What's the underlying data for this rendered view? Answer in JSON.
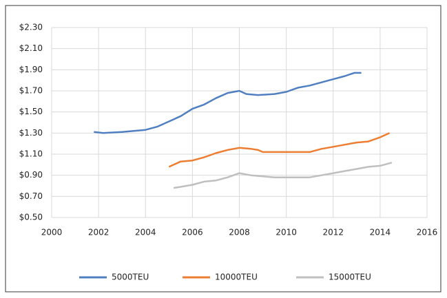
{
  "chart_data": {
    "type": "line",
    "xlim": [
      2000,
      2016
    ],
    "xticks": [
      2000,
      2002,
      2004,
      2006,
      2008,
      2010,
      2012,
      2014,
      2016
    ],
    "ylim": [
      0.5,
      2.3
    ],
    "yticks": [
      {
        "value": 0.5,
        "label": "$0.50"
      },
      {
        "value": 0.7,
        "label": "$0.70"
      },
      {
        "value": 0.9,
        "label": "$0.90"
      },
      {
        "value": 1.1,
        "label": "$1.10"
      },
      {
        "value": 1.3,
        "label": "$1.30"
      },
      {
        "value": 1.5,
        "label": "$1.50"
      },
      {
        "value": 1.7,
        "label": "$1.70"
      },
      {
        "value": 1.9,
        "label": "$1.90"
      },
      {
        "value": 2.1,
        "label": "$2.10"
      },
      {
        "value": 2.3,
        "label": "$2.30"
      }
    ],
    "grid": true,
    "legend": "bottom",
    "series": [
      {
        "name": "5000TEU",
        "color": "#4f7fc0",
        "x": [
          2001.8,
          2002.2,
          2003,
          2003.5,
          2004,
          2004.5,
          2005,
          2005.5,
          2006,
          2006.5,
          2007,
          2007.5,
          2008,
          2008.3,
          2008.8,
          2009.5,
          2010,
          2010.5,
          2011,
          2011.5,
          2012,
          2012.5,
          2012.9,
          2013.2
        ],
        "values": [
          1.31,
          1.3,
          1.31,
          1.32,
          1.33,
          1.36,
          1.41,
          1.46,
          1.53,
          1.57,
          1.63,
          1.68,
          1.7,
          1.67,
          1.66,
          1.67,
          1.69,
          1.73,
          1.75,
          1.78,
          1.81,
          1.84,
          1.87,
          1.87
        ]
      },
      {
        "name": "10000TEU",
        "color": "#ed7d31",
        "x": [
          2005,
          2005.5,
          2006,
          2006.5,
          2007,
          2007.5,
          2008,
          2008.5,
          2008.8,
          2009,
          2010,
          2011,
          2011.5,
          2012,
          2012.5,
          2013,
          2013.5,
          2014,
          2014.4
        ],
        "values": [
          0.98,
          1.03,
          1.04,
          1.07,
          1.11,
          1.14,
          1.16,
          1.15,
          1.14,
          1.12,
          1.12,
          1.12,
          1.15,
          1.17,
          1.19,
          1.21,
          1.22,
          1.26,
          1.3
        ]
      },
      {
        "name": "15000TEU",
        "color": "#bfbfbf",
        "x": [
          2005.2,
          2005.5,
          2006,
          2006.5,
          2007,
          2007.5,
          2008,
          2008.5,
          2009,
          2009.5,
          2010,
          2011,
          2011.5,
          2012,
          2012.5,
          2013,
          2013.5,
          2014,
          2014.5
        ],
        "values": [
          0.78,
          0.79,
          0.81,
          0.84,
          0.85,
          0.88,
          0.92,
          0.9,
          0.89,
          0.88,
          0.88,
          0.88,
          0.9,
          0.92,
          0.94,
          0.96,
          0.98,
          0.99,
          1.02
        ]
      }
    ]
  }
}
